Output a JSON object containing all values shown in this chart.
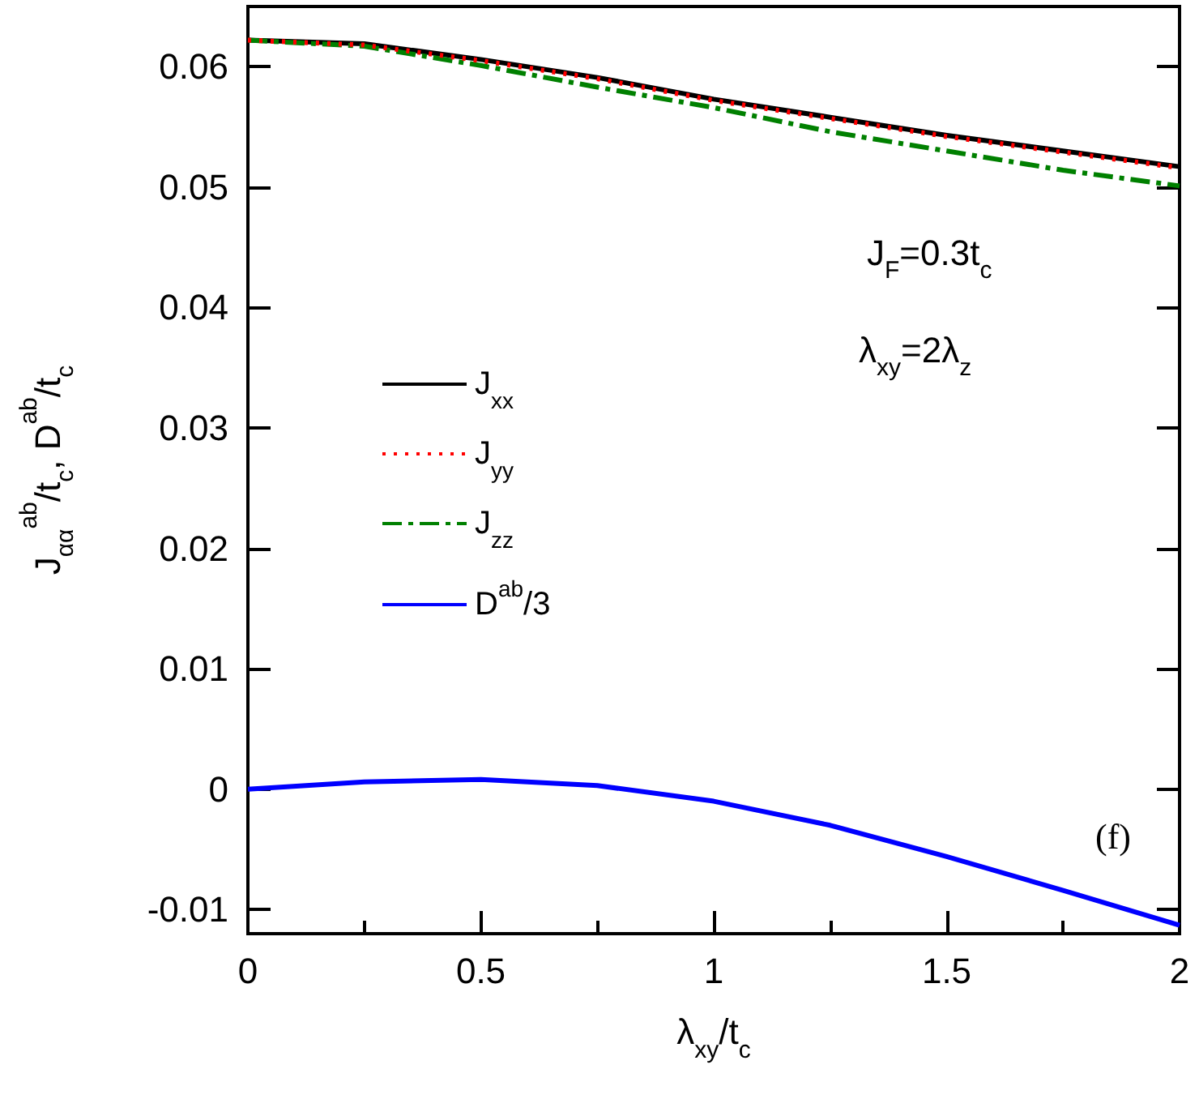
{
  "chart_data": {
    "type": "line",
    "xlabel": "λ$_{xy}$/t$_{c}$",
    "ylabel": "J$_{αα}$$^{ab}$/t$_{c}$, D$^{ab}$/t$_{c}$",
    "x": [
      0,
      0.25,
      0.5,
      0.75,
      1,
      1.25,
      1.5,
      1.75,
      2
    ],
    "series": [
      {
        "name": "J$_{xx}$",
        "color": "#000000",
        "line_style": "solid",
        "values": [
          0.0622,
          0.0619,
          0.0606,
          0.0591,
          0.0573,
          0.0558,
          0.0543,
          0.053,
          0.0517
        ]
      },
      {
        "name": "J$_{yy}$",
        "color": "#ff0000",
        "line_style": "dotted",
        "values": [
          0.0622,
          0.0618,
          0.0605,
          0.059,
          0.0572,
          0.0557,
          0.0542,
          0.0529,
          0.0516
        ]
      },
      {
        "name": "J$_{zz}$",
        "color": "#008000",
        "line_style": "dashdot",
        "values": [
          0.0622,
          0.0617,
          0.0601,
          0.0583,
          0.0566,
          0.0546,
          0.053,
          0.0514,
          0.0501
        ]
      },
      {
        "name": "D$^{ab}$/3",
        "color": "#0000ff",
        "line_style": "solid",
        "values": [
          0.0,
          0.0006,
          0.0008,
          0.0003,
          -0.001,
          -0.003,
          -0.0056,
          -0.0084,
          -0.0113
        ]
      }
    ],
    "xlim": [
      0,
      2
    ],
    "xticks": [
      0,
      0.5,
      1,
      1.5,
      2
    ],
    "ylim": [
      -0.012,
      0.065
    ],
    "yticks": [
      -0.01,
      0,
      0.01,
      0.02,
      0.03,
      0.04,
      0.05,
      0.06
    ],
    "annotations": [
      "J$_{F}$=0.3t$_{c}$",
      "λ$_{xy}$=2λ$_{z}$",
      "(f)"
    ],
    "grid": false,
    "legend": "left",
    "marker": "none"
  }
}
